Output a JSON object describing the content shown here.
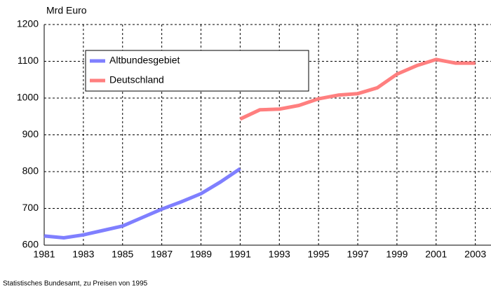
{
  "chart_data": {
    "type": "line",
    "y_label": "Mrd Euro",
    "note": "Statistisches Bundesamt, zu Preisen von 1995",
    "xlim": [
      1981,
      2003.8
    ],
    "xticks": [
      1981,
      1983,
      1985,
      1987,
      1989,
      1991,
      1993,
      1995,
      1997,
      1999,
      2001,
      2003
    ],
    "ylim": [
      600,
      1200
    ],
    "yticks": [
      600,
      700,
      800,
      900,
      1000,
      1100,
      1200
    ],
    "grid": true,
    "legend": "top-left",
    "series": [
      {
        "name": "Altbundesgebiet",
        "color": "#7f7fff",
        "x": [
          1981,
          1982,
          1983,
          1984,
          1985,
          1986,
          1987,
          1988,
          1989,
          1990,
          1991
        ],
        "values": [
          625,
          620,
          628,
          640,
          652,
          675,
          698,
          718,
          740,
          772,
          808
        ]
      },
      {
        "name": "Deutschland",
        "color": "#ff7f7f",
        "x": [
          1991,
          1992,
          1993,
          1994,
          1995,
          1996,
          1997,
          1998,
          1999,
          2000,
          2001,
          2002,
          2003
        ],
        "values": [
          943,
          968,
          970,
          980,
          998,
          1008,
          1012,
          1028,
          1065,
          1088,
          1105,
          1095,
          1095
        ]
      }
    ]
  }
}
